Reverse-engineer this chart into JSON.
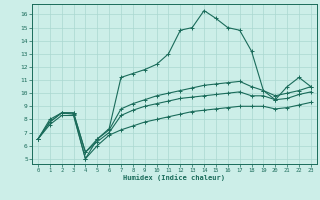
{
  "xlabel": "Humidex (Indice chaleur)",
  "background_color": "#cceee8",
  "grid_color": "#aad8d0",
  "line_color": "#1a6b5a",
  "xlim": [
    -0.5,
    23.5
  ],
  "ylim": [
    4.6,
    16.8
  ],
  "yticks": [
    5,
    6,
    7,
    8,
    9,
    10,
    11,
    12,
    13,
    14,
    15,
    16
  ],
  "xticks": [
    0,
    1,
    2,
    3,
    4,
    5,
    6,
    7,
    8,
    9,
    10,
    11,
    12,
    13,
    14,
    15,
    16,
    17,
    18,
    19,
    20,
    21,
    22,
    23
  ],
  "hours": [
    0,
    1,
    2,
    3,
    4,
    5,
    6,
    7,
    8,
    9,
    10,
    11,
    12,
    13,
    14,
    15,
    16,
    17,
    18,
    19,
    20,
    21,
    22,
    23
  ],
  "line_main": [
    6.5,
    8.0,
    8.5,
    8.4,
    5.0,
    6.5,
    7.3,
    11.2,
    11.5,
    11.8,
    12.2,
    13.0,
    14.8,
    15.0,
    16.3,
    15.7,
    15.0,
    14.8,
    13.2,
    10.2,
    9.5,
    10.5,
    11.2,
    10.5
  ],
  "line_upper_flat": [
    6.5,
    7.8,
    8.5,
    8.5,
    5.5,
    6.5,
    7.2,
    8.8,
    9.2,
    9.5,
    9.8,
    10.0,
    10.2,
    10.4,
    10.6,
    10.7,
    10.8,
    10.9,
    10.5,
    10.2,
    9.8,
    10.0,
    10.2,
    10.5
  ],
  "line_mid_flat": [
    6.5,
    7.8,
    8.5,
    8.5,
    5.5,
    6.3,
    7.0,
    8.3,
    8.7,
    9.0,
    9.2,
    9.4,
    9.6,
    9.7,
    9.8,
    9.9,
    10.0,
    10.1,
    9.8,
    9.8,
    9.5,
    9.6,
    9.9,
    10.1
  ],
  "line_lower_flat": [
    6.5,
    7.6,
    8.3,
    8.3,
    5.0,
    6.0,
    6.8,
    7.2,
    7.5,
    7.8,
    8.0,
    8.2,
    8.4,
    8.6,
    8.7,
    8.8,
    8.9,
    9.0,
    9.0,
    9.0,
    8.8,
    8.9,
    9.1,
    9.3
  ]
}
